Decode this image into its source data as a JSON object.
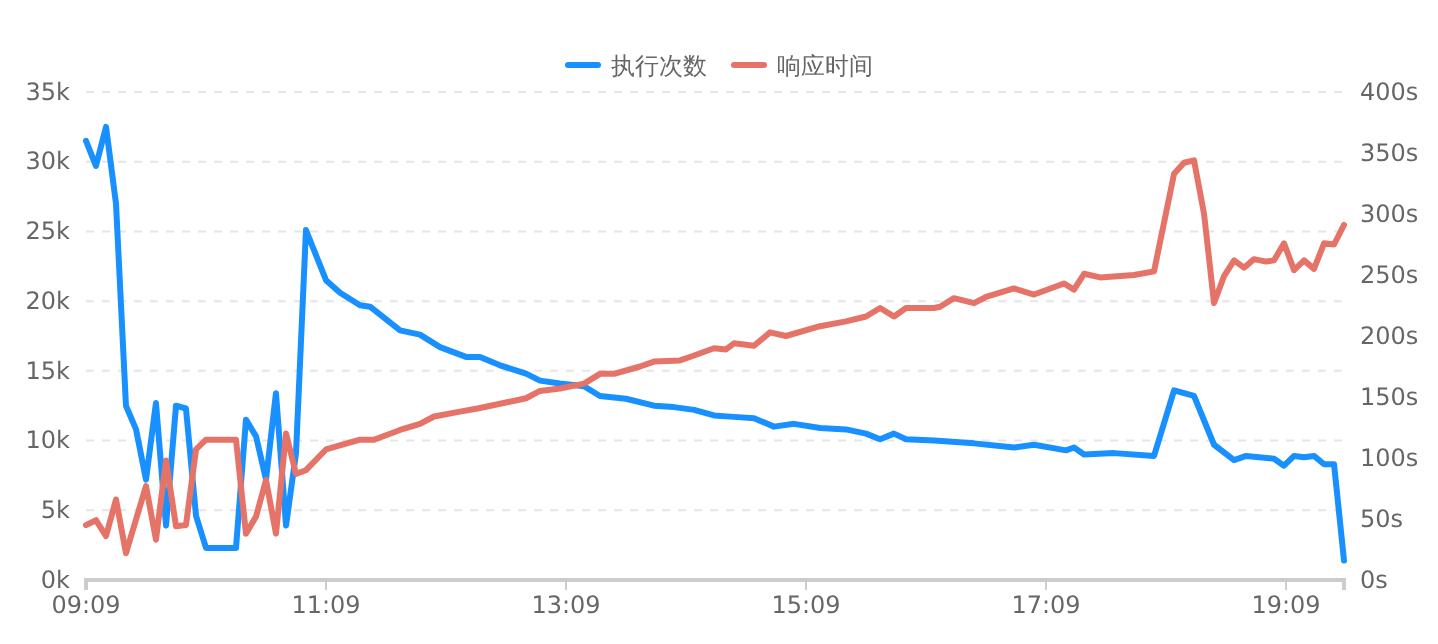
{
  "chart_data": {
    "type": "line",
    "legend": "top",
    "grid": "y",
    "line_style": "solid",
    "marker": "none",
    "xlim": [
      9.15,
      19.633
    ],
    "xticks": [
      {
        "value": 9.15,
        "label": "09:09"
      },
      {
        "value": 11.15,
        "label": "11:09"
      },
      {
        "value": 13.15,
        "label": "13:09"
      },
      {
        "value": 15.15,
        "label": "15:09"
      },
      {
        "value": 17.15,
        "label": "17:09"
      },
      {
        "value": 19.15,
        "label": "19:09"
      }
    ],
    "ylim": [
      0,
      35000
    ],
    "yticks": [
      {
        "value": 0,
        "label": "0k"
      },
      {
        "value": 5000,
        "label": "5k"
      },
      {
        "value": 10000,
        "label": "10k"
      },
      {
        "value": 15000,
        "label": "15k"
      },
      {
        "value": 20000,
        "label": "20k"
      },
      {
        "value": 25000,
        "label": "25k"
      },
      {
        "value": 30000,
        "label": "30k"
      },
      {
        "value": 35000,
        "label": "35k"
      }
    ],
    "y2lim": [
      0,
      400
    ],
    "y2ticks": [
      {
        "value": 0,
        "label": "0s"
      },
      {
        "value": 50,
        "label": "50s"
      },
      {
        "value": 100,
        "label": "100s"
      },
      {
        "value": 150,
        "label": "150s"
      },
      {
        "value": 200,
        "label": "200s"
      },
      {
        "value": 250,
        "label": "250s"
      },
      {
        "value": 300,
        "label": "300s"
      },
      {
        "value": 350,
        "label": "350s"
      },
      {
        "value": 400,
        "label": "400s"
      }
    ],
    "series": [
      {
        "name": "执行次数",
        "color": "#1890ff",
        "x": [
          9.15,
          9.233,
          9.317,
          9.4,
          9.483,
          9.567,
          9.65,
          9.733,
          9.817,
          9.9,
          9.983,
          10.067,
          10.15,
          10.4,
          10.483,
          10.567,
          10.65,
          10.733,
          10.817,
          10.9,
          10.983,
          11.15,
          11.267,
          11.433,
          11.517,
          11.767,
          11.933,
          12.1,
          12.317,
          12.433,
          12.6,
          12.817,
          12.933,
          13.1,
          13.3,
          13.433,
          13.65,
          13.883,
          14.05,
          14.217,
          14.383,
          14.55,
          14.717,
          14.883,
          15.05,
          15.267,
          15.483,
          15.65,
          15.767,
          15.883,
          15.983,
          16.217,
          16.55,
          16.883,
          17.05,
          17.317,
          17.383,
          17.467,
          17.717,
          18.05,
          18.217,
          18.383,
          18.55,
          18.717,
          18.817,
          19.05,
          19.133,
          19.217,
          19.3,
          19.383,
          19.467,
          19.55,
          19.633
        ],
        "values": [
          31500,
          29700,
          32500,
          27000,
          12500,
          10800,
          7200,
          12700,
          3900,
          12500,
          12300,
          4600,
          2300,
          2300,
          11500,
          10300,
          7200,
          13400,
          3900,
          9100,
          25100,
          21500,
          20600,
          19700,
          19600,
          17900,
          17600,
          16700,
          16000,
          16000,
          15400,
          14800,
          14300,
          14100,
          13900,
          13200,
          13000,
          12500,
          12400,
          12200,
          11800,
          11700,
          11600,
          11000,
          11200,
          10900,
          10800,
          10500,
          10100,
          10500,
          10100,
          10000,
          9800,
          9500,
          9700,
          9300,
          9500,
          9000,
          9100,
          8900,
          13600,
          13200,
          9700,
          8600,
          8900,
          8700,
          8200,
          8900,
          8800,
          8900,
          8300,
          8300,
          1400
        ]
      },
      {
        "name": "响应时间",
        "color": "#e57368",
        "axis": "y2",
        "x": [
          9.15,
          9.233,
          9.317,
          9.4,
          9.483,
          9.65,
          9.733,
          9.817,
          9.9,
          9.983,
          10.067,
          10.15,
          10.4,
          10.483,
          10.567,
          10.65,
          10.733,
          10.817,
          10.9,
          10.983,
          11.15,
          11.433,
          11.55,
          11.767,
          11.933,
          12.05,
          12.267,
          12.433,
          12.483,
          12.817,
          12.933,
          13.1,
          13.3,
          13.433,
          13.55,
          13.767,
          13.883,
          14.1,
          14.217,
          14.383,
          14.483,
          14.55,
          14.717,
          14.85,
          14.983,
          15.267,
          15.483,
          15.65,
          15.767,
          15.883,
          15.983,
          16.217,
          16.267,
          16.383,
          16.55,
          16.65,
          16.883,
          17.05,
          17.3,
          17.383,
          17.467,
          17.6,
          17.883,
          18.05,
          18.217,
          18.3,
          18.383,
          18.467,
          18.55,
          18.633,
          18.717,
          18.8,
          18.883,
          18.983,
          19.05,
          19.133,
          19.217,
          19.3,
          19.383,
          19.467,
          19.55,
          19.633
        ],
        "values": [
          45,
          49,
          36,
          66,
          22,
          77,
          33,
          98,
          44,
          45,
          107,
          115,
          115,
          38,
          52,
          82,
          38,
          120,
          87,
          90,
          107,
          115,
          115,
          123,
          128,
          134,
          138,
          141,
          142,
          149,
          155,
          157,
          161,
          169,
          169,
          175,
          179,
          180,
          184,
          190,
          189,
          194,
          192,
          203,
          200,
          208,
          212,
          216,
          223,
          216,
          223,
          223,
          224,
          231,
          227,
          232,
          239,
          234,
          243,
          238,
          251,
          248,
          250,
          253,
          333,
          342,
          344,
          300,
          227,
          249,
          262,
          256,
          263,
          261,
          262,
          276,
          254,
          262,
          255,
          276,
          275,
          291
        ]
      }
    ]
  }
}
